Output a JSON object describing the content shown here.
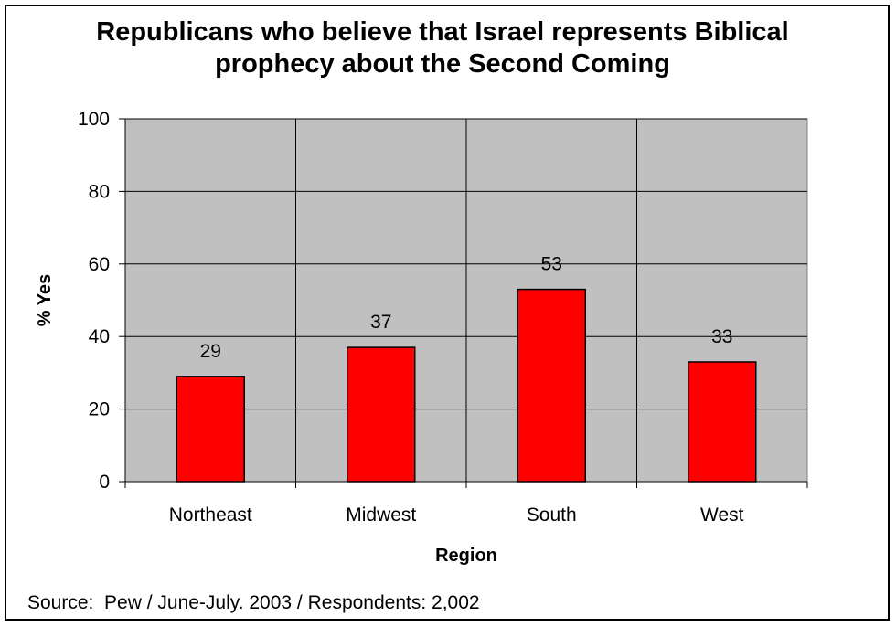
{
  "chart_data": {
    "type": "bar",
    "title_lines": [
      "Republicans who believe that Israel represents Biblical",
      "prophecy about the Second Coming"
    ],
    "xlabel": "Region",
    "ylabel": "% Yes",
    "categories": [
      "Northeast",
      "Midwest",
      "South",
      "West"
    ],
    "values": [
      29,
      37,
      53,
      33
    ],
    "data_labels": [
      "29",
      "37",
      "53",
      "33"
    ],
    "ylim": [
      0,
      100
    ],
    "yticks": [
      0,
      20,
      40,
      60,
      80,
      100
    ],
    "grid": true,
    "legend": "none",
    "colors": {
      "bar": "#ff0000",
      "plot_background": "#c0c0c0",
      "gridline": "#000000"
    }
  },
  "source_text": "Source:  Pew / June-July. 2003 / Respondents: 2,002"
}
